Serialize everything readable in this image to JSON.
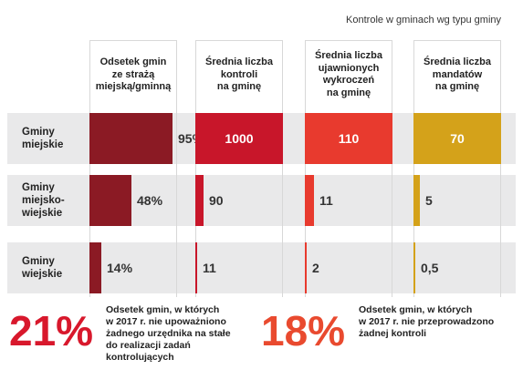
{
  "title": "Kontrole w gminach wg typu gminy",
  "colors": {
    "col1": "#8b1a24",
    "col2": "#c8162a",
    "col3": "#e83a2e",
    "col4": "#d4a21a",
    "bigRed": "#d8182c",
    "bigOrange": "#e94a2f"
  },
  "chart_data": {
    "type": "table",
    "title": "Kontrole w gminach wg typu gminy",
    "rows": [
      "Gminy miejskie",
      "Gminy miejsko-wiejskie",
      "Gminy wiejskie"
    ],
    "columns": [
      {
        "name": "Odsetek gmin ze strażą miejską/gminną",
        "values": [
          95,
          48,
          14
        ],
        "labels": [
          "95%",
          "48%",
          "14%"
        ],
        "max": 100
      },
      {
        "name": "Średnia liczba kontroli na gminę",
        "values": [
          1000,
          90,
          11
        ],
        "labels": [
          "1000",
          "90",
          "11"
        ],
        "max": 1000
      },
      {
        "name": "Średnia liczba ujawnionych wykroczeń na gminę",
        "values": [
          110,
          11,
          2
        ],
        "labels": [
          "110",
          "11",
          "2"
        ],
        "max": 110
      },
      {
        "name": "Średnia liczba mandatów na gminę",
        "values": [
          70,
          5,
          0.5
        ],
        "labels": [
          "70",
          "5",
          "0,5"
        ],
        "max": 70
      }
    ]
  },
  "row_labels": {
    "r0": [
      "Gminy",
      "miejskie"
    ],
    "r1": [
      "Gminy",
      "miejsko-",
      "wiejskie"
    ],
    "r2": [
      "Gminy",
      "wiejskie"
    ]
  },
  "col_heads": {
    "c0": [
      "Odsetek gmin",
      "ze strażą",
      "miejską/gminną"
    ],
    "c1": [
      "Średnia liczba",
      "kontroli",
      "na gminę"
    ],
    "c2": [
      "Średnia liczba",
      "ujawnionych",
      "wykroczeń",
      "na gminę"
    ],
    "c3": [
      "Średnia liczba",
      "mandatów",
      "na gminę"
    ]
  },
  "footer": {
    "left_big": "21%",
    "left_note": [
      "Odsetek gmin, w których",
      "w 2017 r. nie upoważniono",
      "żadnego urzędnika na stałe",
      "do realizacji zadań",
      "kontrolujących"
    ],
    "right_big": "18%",
    "right_note": [
      "Odsetek gmin, w których",
      "w 2017 r. nie przeprowadzono",
      "żadnej kontroli"
    ]
  }
}
